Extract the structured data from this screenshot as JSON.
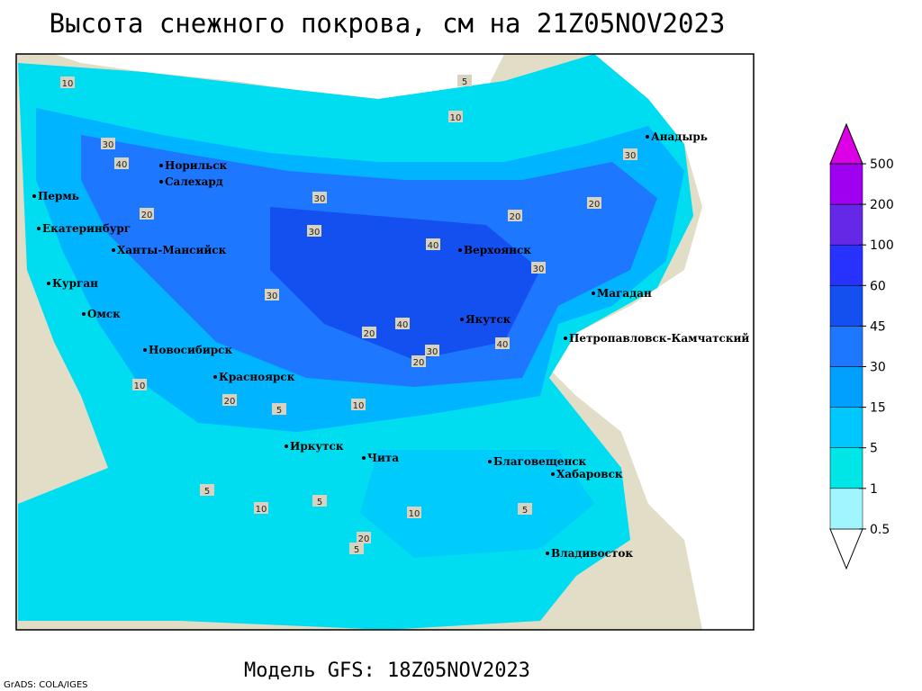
{
  "header": {
    "title": "Высота снежного покрова, см на 21Z05NOV2023"
  },
  "footer": {
    "model": "Модель GFS: 18Z05NOV2023",
    "credit": "GrADS: COLA/IGES"
  },
  "colorbar": {
    "levels": [
      0.5,
      1,
      5,
      15,
      30,
      45,
      60,
      100,
      200,
      500
    ],
    "colors": [
      "#ffffff",
      "#a0f5ff",
      "#00e6e6",
      "#00c8ff",
      "#00a0ff",
      "#1e78ff",
      "#1450f0",
      "#2832ff",
      "#6428e6",
      "#a000f0",
      "#dc00e6"
    ]
  },
  "cities": [
    "Норильск",
    "Салехард",
    "Пермь",
    "Екатеринбург",
    "Ханты-Мансийск",
    "Курган",
    "Омск",
    "Новосибирск",
    "Красноярск",
    "Иркутск",
    "Чита",
    "Благовещенск",
    "Хабаровск",
    "Владивосток",
    "Верхоянск",
    "Якутск",
    "Магадан",
    "Петропавловск-Камчатский",
    "Анадырь"
  ],
  "contour_labels": [
    10,
    5,
    10,
    30,
    40,
    20,
    30,
    30,
    40,
    30,
    20,
    30,
    40,
    20,
    30,
    20,
    5,
    10,
    10,
    20,
    5,
    10,
    5,
    10,
    20,
    5,
    5,
    30,
    20,
    40
  ]
}
